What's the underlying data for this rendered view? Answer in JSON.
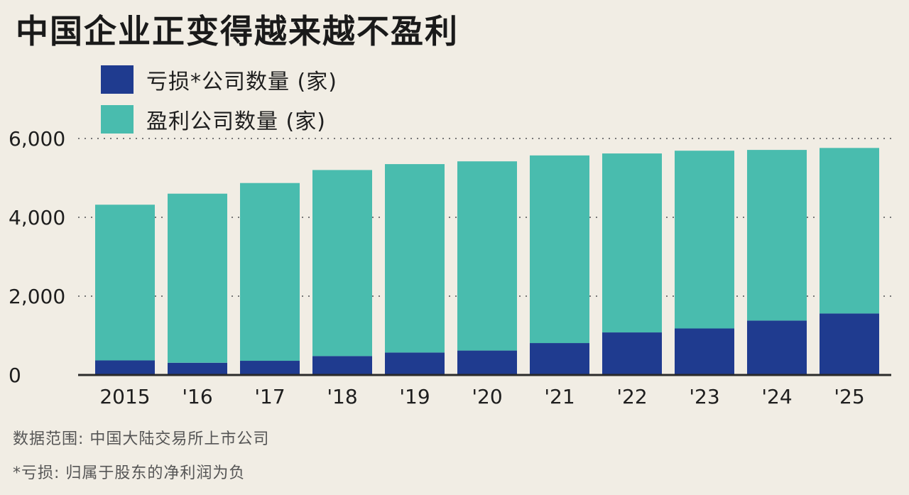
{
  "title": "中国企业正变得越来越不盈利",
  "footnotes": [
    "数据范围: 中国大陆交易所上市公司",
    "*亏损: 归属于股东的净利润为负"
  ],
  "colors": {
    "loss": "#1f3b8f",
    "profit": "#49bcae",
    "background": "#f1ede4",
    "grid": "#777777"
  },
  "chart_data": {
    "type": "bar",
    "stacked": true,
    "categories": [
      "2015",
      "'16",
      "'17",
      "'18",
      "'19",
      "'20",
      "'21",
      "'22",
      "'23",
      "'24",
      "'25"
    ],
    "series": [
      {
        "name": "亏损*公司数量 (家)",
        "color": "#1f3b8f",
        "values": [
          370,
          310,
          360,
          480,
          570,
          620,
          810,
          1080,
          1180,
          1380,
          1560
        ]
      },
      {
        "name": "盈利公司数量 (家)",
        "color": "#49bcae",
        "values": [
          3950,
          4290,
          4510,
          4720,
          4780,
          4800,
          4760,
          4540,
          4510,
          4330,
          4200
        ]
      }
    ],
    "yticks": [
      0,
      2000,
      4000,
      6000
    ],
    "ytick_labels": [
      "0",
      "2,000",
      "4,000",
      "6,000"
    ],
    "ylim": [
      0,
      6000
    ],
    "grid": true,
    "legend": "top-left"
  }
}
